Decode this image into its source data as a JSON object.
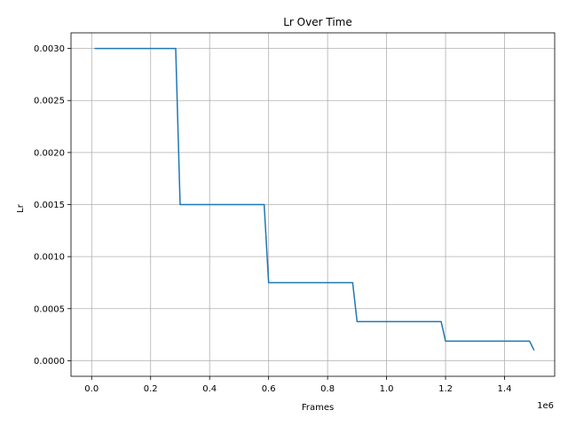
{
  "chart_data": {
    "type": "line",
    "title": "Lr Over Time",
    "xlabel": "Frames",
    "ylabel": "Lr",
    "x_offset_label": "1e6",
    "xlim": [
      -70000,
      1570000
    ],
    "ylim": [
      -0.00015,
      0.00315
    ],
    "x_ticks": [
      0,
      200000,
      400000,
      600000,
      800000,
      1000000,
      1200000,
      1400000
    ],
    "x_tick_labels": [
      "0.0",
      "0.2",
      "0.4",
      "0.6",
      "0.8",
      "1.0",
      "1.2",
      "1.4"
    ],
    "y_ticks": [
      0,
      0.0005,
      0.001,
      0.0015,
      0.002,
      0.0025,
      0.003
    ],
    "y_tick_labels": [
      "0.0000",
      "0.0005",
      "0.0010",
      "0.0015",
      "0.0020",
      "0.0025",
      "0.0030"
    ],
    "grid": true,
    "series": [
      {
        "color": "#1f77b4",
        "x": [
          10000,
          285000,
          300000,
          585000,
          600000,
          885000,
          900000,
          1185000,
          1200000,
          1485000,
          1500000
        ],
        "y": [
          0.003,
          0.003,
          0.0015,
          0.0015,
          0.00075,
          0.00075,
          0.000375,
          0.000375,
          0.0001875,
          0.0001875,
          0.0001
        ]
      }
    ]
  }
}
